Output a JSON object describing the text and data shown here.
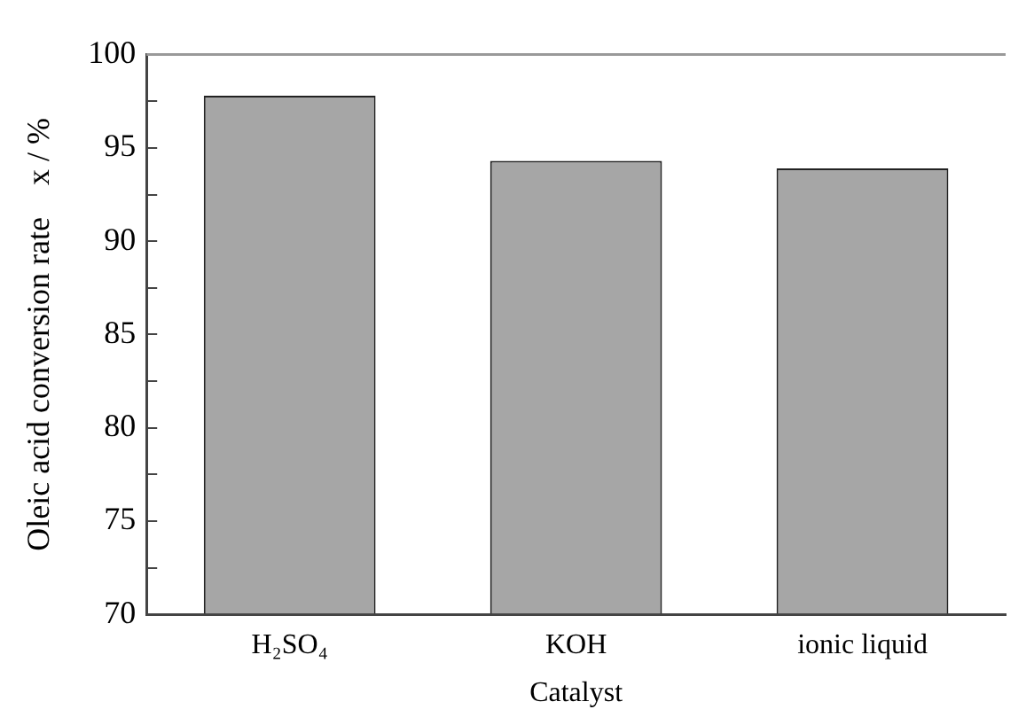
{
  "chart_data": {
    "type": "bar",
    "xlabel": "Catalyst",
    "ylabel": "Oleic acid conversion rate    x / %",
    "categories": [
      "H₂SO₄",
      "KOH",
      "ionic liquid"
    ],
    "values": [
      97.8,
      94.3,
      93.9
    ],
    "color": "#a6a6a6",
    "ylim": [
      70,
      100
    ],
    "yticks": [
      70,
      {
        "value": 72.5,
        "label": null
      },
      75,
      {
        "value": 77.5,
        "label": null
      },
      80,
      {
        "value": 82.5,
        "label": null
      },
      85,
      {
        "value": 87.5,
        "label": null
      },
      90,
      {
        "value": 92.5,
        "label": null
      },
      95,
      {
        "value": 97.5,
        "label": null
      },
      100
    ],
    "grid": false
  }
}
